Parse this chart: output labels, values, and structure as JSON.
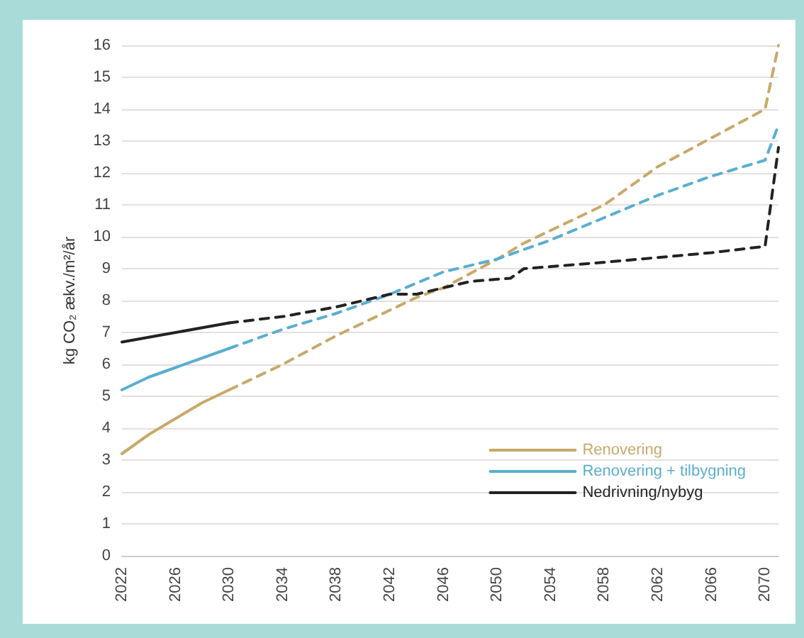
{
  "chart_data": {
    "type": "line",
    "ylabel": "kg CO₂ ækv./m²/år",
    "xlim": [
      2022,
      2071
    ],
    "xticks": [
      2022,
      2026,
      2030,
      2034,
      2038,
      2042,
      2046,
      2050,
      2054,
      2058,
      2062,
      2066,
      2070
    ],
    "ylim": [
      0,
      16
    ],
    "yticks": [
      0,
      1,
      2,
      3,
      4,
      5,
      6,
      7,
      8,
      9,
      10,
      11,
      12,
      13,
      14,
      15,
      16
    ],
    "grid": "y",
    "legend": "bottom right",
    "marker": "none",
    "series": [
      {
        "name": "Renovering",
        "color": "#c8a96a",
        "line_style": "solid",
        "x": [
          2022,
          2024,
          2026,
          2028,
          2030
        ],
        "values": [
          3.2,
          3.8,
          4.3,
          4.8,
          5.2
        ]
      },
      {
        "color": "#c8a96a",
        "line_style": "dashed",
        "x": [
          2030,
          2034,
          2038,
          2042,
          2044,
          2046,
          2050,
          2052,
          2054,
          2058,
          2062,
          2066,
          2070,
          2071
        ],
        "values": [
          5.2,
          6.0,
          6.9,
          7.7,
          8.1,
          8.4,
          9.3,
          9.8,
          10.2,
          11.0,
          12.2,
          13.1,
          14.0,
          16.0
        ]
      },
      {
        "name": "Renovering + tilbygning",
        "color": "#5aaed0",
        "line_style": "solid",
        "x": [
          2022,
          2024,
          2026,
          2028,
          2030
        ],
        "values": [
          5.2,
          5.6,
          5.9,
          6.2,
          6.5
        ]
      },
      {
        "color": "#5aaed0",
        "line_style": "dashed",
        "x": [
          2030,
          2034,
          2038,
          2042,
          2046,
          2050,
          2054,
          2058,
          2062,
          2066,
          2070,
          2071
        ],
        "values": [
          6.5,
          7.1,
          7.6,
          8.2,
          8.9,
          9.3,
          9.9,
          10.6,
          11.3,
          11.9,
          12.4,
          13.5
        ]
      },
      {
        "name": "Nedrivning/nybyg",
        "color": "#222222",
        "line_style": "solid",
        "x": [
          2022,
          2026,
          2030
        ],
        "values": [
          6.7,
          7.0,
          7.3
        ]
      },
      {
        "color": "#222222",
        "line_style": "dashed",
        "x": [
          2030,
          2034,
          2038,
          2042,
          2044,
          2046,
          2048,
          2051,
          2052,
          2058,
          2066,
          2070,
          2071
        ],
        "values": [
          7.3,
          7.5,
          7.8,
          8.2,
          8.2,
          8.4,
          8.6,
          8.7,
          9.0,
          9.2,
          9.5,
          9.7,
          12.8
        ]
      }
    ]
  }
}
